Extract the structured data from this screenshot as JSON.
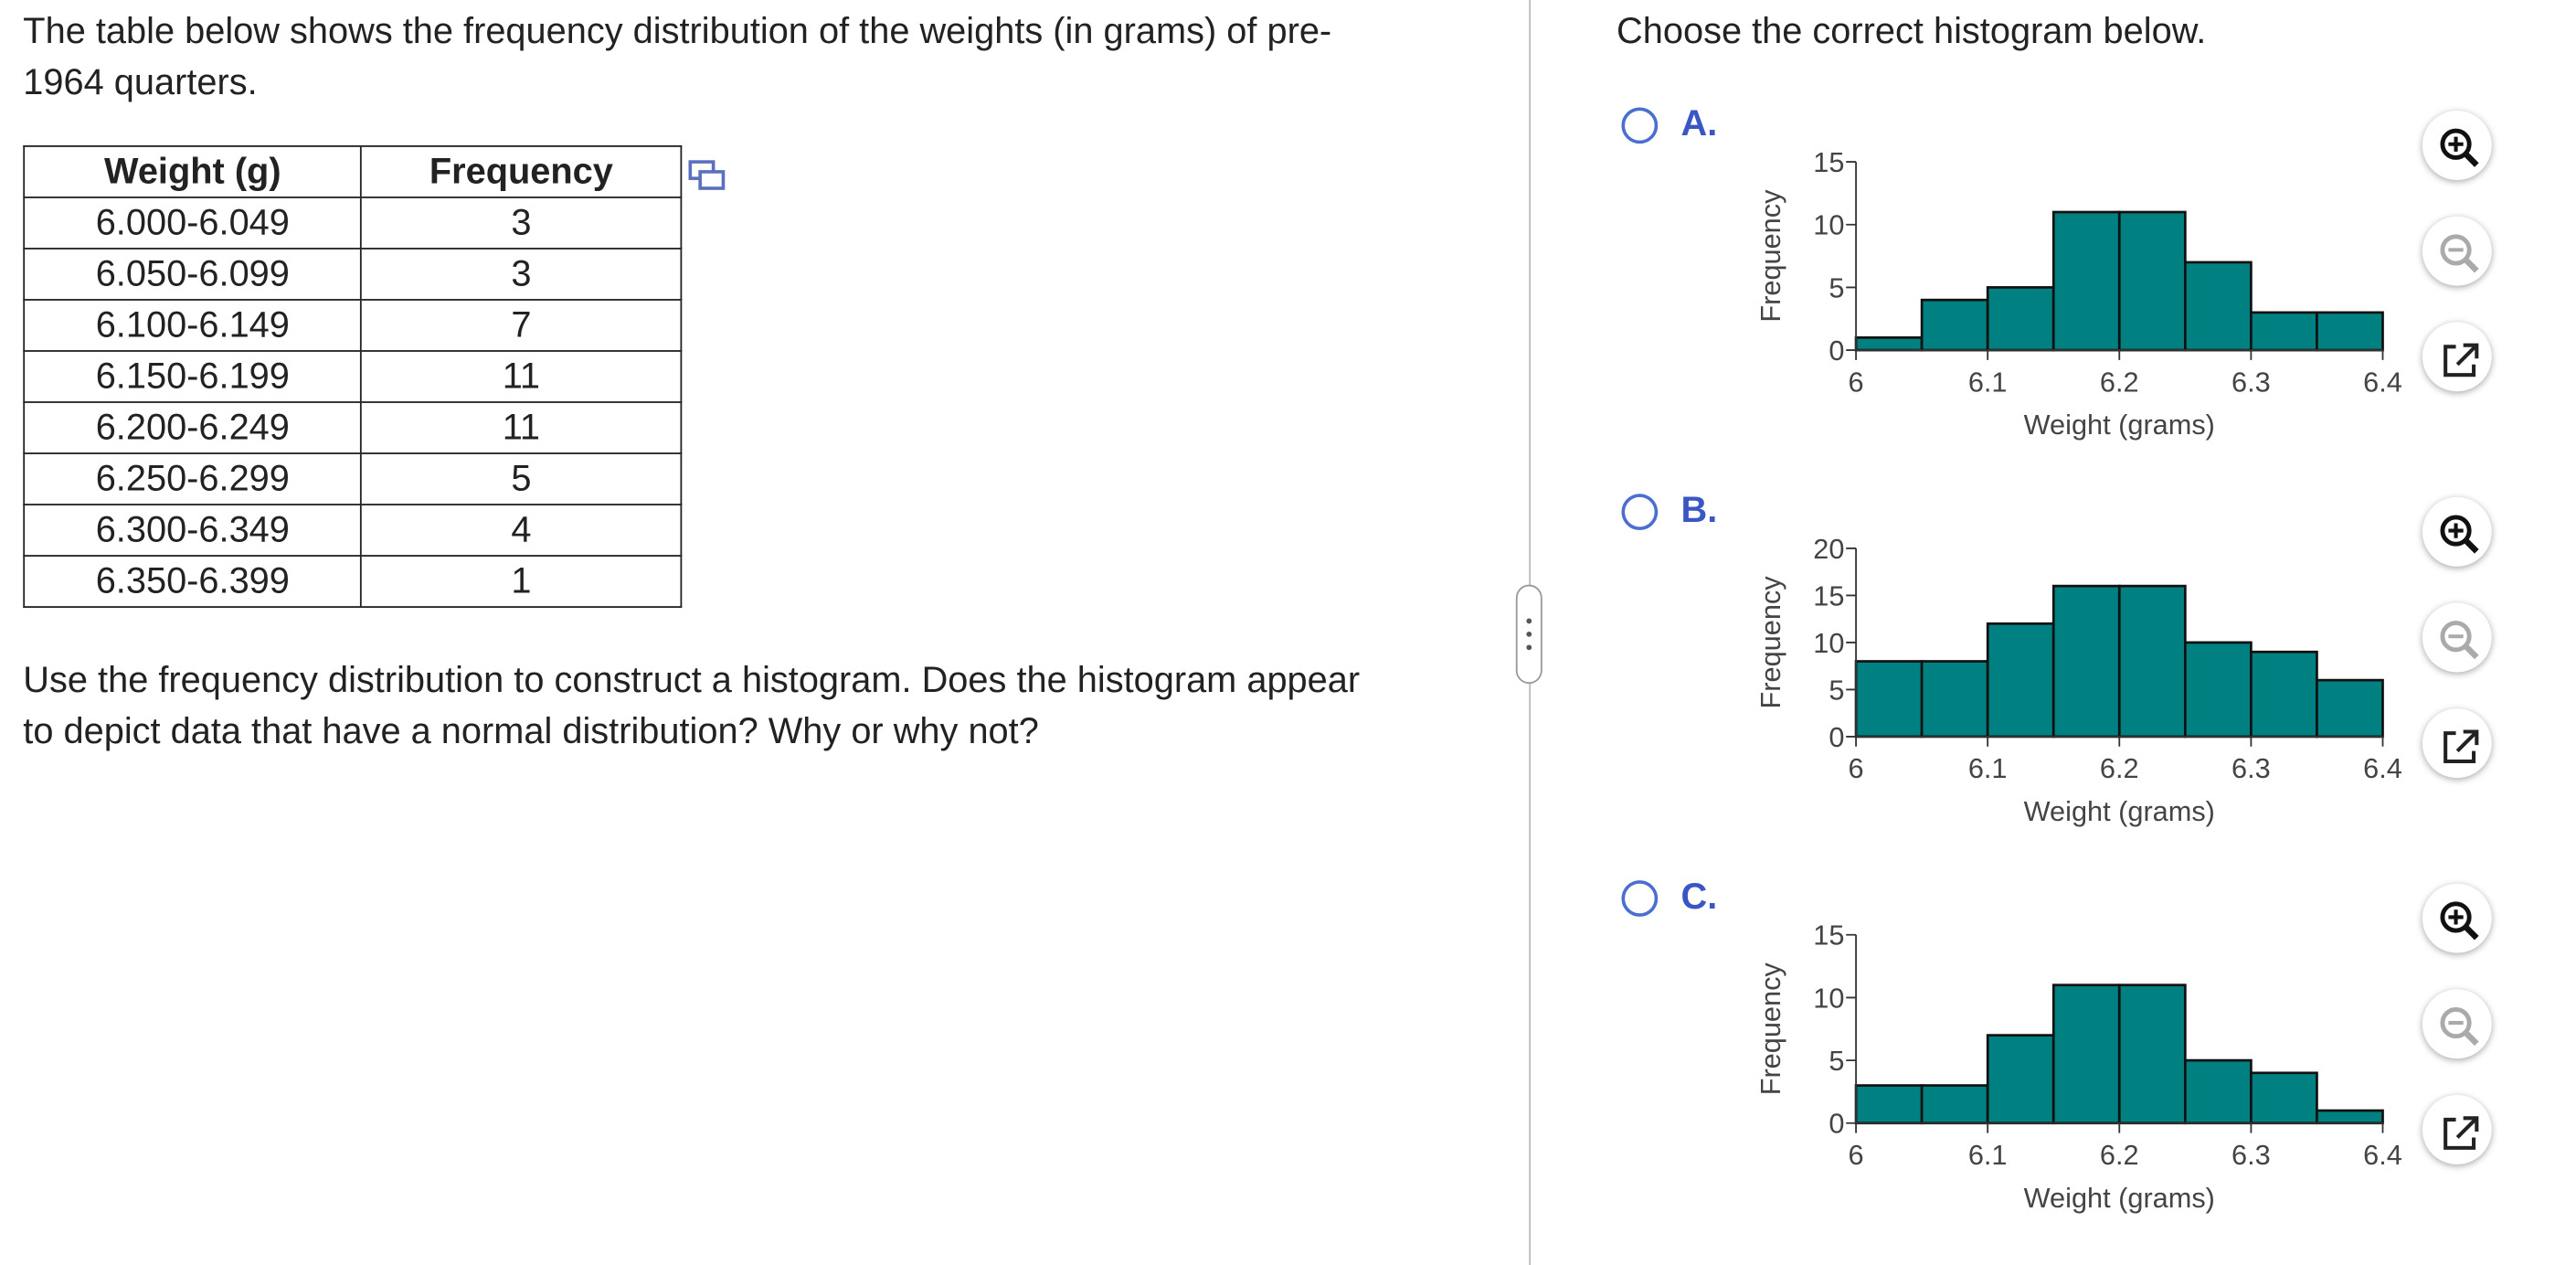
{
  "left": {
    "intro": "The table below shows the frequency distribution of the weights (in grams) of pre-1964 quarters.",
    "table": {
      "headers": [
        "Weight (g)",
        "Frequency"
      ],
      "rows": [
        [
          "6.000-6.049",
          3
        ],
        [
          "6.050-6.099",
          3
        ],
        [
          "6.100-6.149",
          7
        ],
        [
          "6.150-6.199",
          11
        ],
        [
          "6.200-6.249",
          11
        ],
        [
          "6.250-6.299",
          5
        ],
        [
          "6.300-6.349",
          4
        ],
        [
          "6.350-6.399",
          1
        ]
      ]
    },
    "question": "Use the frequency distribution to construct a histogram. Does the histogram appear to depict data that have a normal distribution? Why or why not?"
  },
  "prompt": "Choose the correct histogram below.",
  "choices": [
    "A.",
    "B.",
    "C."
  ],
  "chart_data": [
    {
      "type": "histogram",
      "xlabel": "Weight (grams)",
      "ylabel": "Frequency",
      "color": "#008080",
      "bins": [
        6,
        6.05,
        6.1,
        6.15,
        6.2,
        6.25,
        6.3,
        6.35,
        6.4
      ],
      "counts": [
        1,
        4,
        5,
        11,
        11,
        7,
        3,
        3
      ],
      "xlim": [
        6,
        6.4
      ],
      "xticks": [
        6,
        6.1,
        6.2,
        6.3,
        6.4
      ],
      "ylim": [
        0,
        15
      ],
      "yticks": [
        0,
        5,
        10,
        15
      ]
    },
    {
      "type": "histogram",
      "xlabel": "Weight (grams)",
      "ylabel": "Frequency",
      "color": "#008080",
      "bins": [
        6,
        6.05,
        6.1,
        6.15,
        6.2,
        6.25,
        6.3,
        6.35,
        6.4
      ],
      "counts": [
        8,
        8,
        12,
        16,
        16,
        10,
        9,
        6
      ],
      "xlim": [
        6,
        6.4
      ],
      "xticks": [
        6,
        6.1,
        6.2,
        6.3,
        6.4
      ],
      "ylim": [
        0,
        20
      ],
      "yticks": [
        0,
        5,
        10,
        15,
        20
      ]
    },
    {
      "type": "histogram",
      "xlabel": "Weight (grams)",
      "ylabel": "Frequency",
      "color": "#008080",
      "bins": [
        6,
        6.05,
        6.1,
        6.15,
        6.2,
        6.25,
        6.3,
        6.35,
        6.4
      ],
      "counts": [
        3,
        3,
        7,
        11,
        11,
        5,
        4,
        1
      ],
      "xlim": [
        6,
        6.4
      ],
      "xticks": [
        6,
        6.1,
        6.2,
        6.3,
        6.4
      ],
      "ylim": [
        0,
        15
      ],
      "yticks": [
        0,
        5,
        10,
        15
      ]
    }
  ]
}
